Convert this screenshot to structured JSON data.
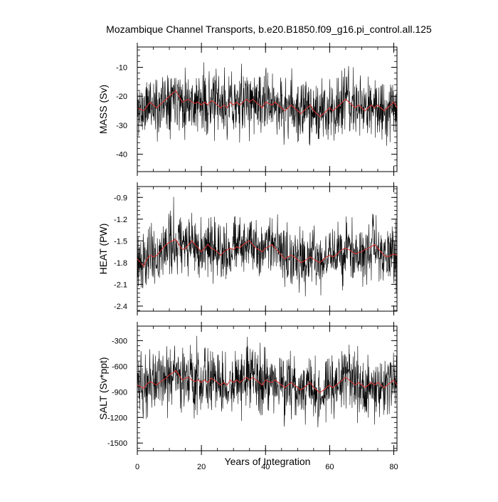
{
  "chart_data": {
    "type": "line",
    "title": "Mozambique Channel Transports, b.e20.B1850.f09_g16.pi_control.all.125",
    "xlabel": "Years of Integration",
    "xlim": [
      0,
      81
    ],
    "xticks": [
      0,
      20,
      40,
      60,
      80
    ],
    "colors": {
      "monthly": "#000000",
      "smoothed": "#e03030"
    },
    "panels": [
      {
        "name": "mass",
        "ylabel": "MASS (Sv)",
        "ylim": [
          -46,
          -3
        ],
        "yticks": [
          -10,
          -20,
          -30,
          -40
        ],
        "annual_mean": [
          -24,
          -24.5,
          -25,
          -23.5,
          -22,
          -23,
          -24,
          -23,
          -22,
          -21,
          -20,
          -19,
          -18,
          -20,
          -22,
          -21.5,
          -21,
          -22,
          -22.5,
          -22,
          -23,
          -22,
          -23,
          -21.5,
          -22,
          -23,
          -24,
          -23,
          -24,
          -22,
          -23,
          -22,
          -23,
          -22,
          -21,
          -22,
          -21,
          -22,
          -23,
          -24,
          -22,
          -22.5,
          -23,
          -22,
          -23,
          -24,
          -25,
          -24,
          -23,
          -24,
          -25,
          -26,
          -25,
          -24,
          -23,
          -25,
          -26,
          -27,
          -26,
          -25,
          -24,
          -25,
          -24,
          -23,
          -22,
          -21,
          -22,
          -23,
          -24,
          -23,
          -24,
          -25,
          -24,
          -23,
          -24,
          -23,
          -24,
          -25,
          -24,
          -23,
          -22,
          -24
        ]
      },
      {
        "name": "heat",
        "ylabel": "HEAT (PW)",
        "ylim": [
          -2.47,
          -0.75
        ],
        "yticks": [
          -0.9,
          -1.2,
          -1.5,
          -1.8,
          -2.1,
          -2.4
        ],
        "annual_mean": [
          -1.75,
          -1.8,
          -1.85,
          -1.75,
          -1.7,
          -1.72,
          -1.7,
          -1.65,
          -1.6,
          -1.55,
          -1.52,
          -1.5,
          -1.48,
          -1.55,
          -1.62,
          -1.6,
          -1.55,
          -1.5,
          -1.55,
          -1.6,
          -1.65,
          -1.6,
          -1.55,
          -1.6,
          -1.62,
          -1.65,
          -1.7,
          -1.65,
          -1.62,
          -1.6,
          -1.62,
          -1.58,
          -1.6,
          -1.55,
          -1.52,
          -1.5,
          -1.55,
          -1.6,
          -1.62,
          -1.65,
          -1.6,
          -1.58,
          -1.55,
          -1.6,
          -1.65,
          -1.7,
          -1.75,
          -1.72,
          -1.7,
          -1.72,
          -1.76,
          -1.8,
          -1.78,
          -1.75,
          -1.72,
          -1.75,
          -1.78,
          -1.8,
          -1.76,
          -1.72,
          -1.7,
          -1.72,
          -1.7,
          -1.65,
          -1.62,
          -1.6,
          -1.62,
          -1.65,
          -1.68,
          -1.66,
          -1.65,
          -1.62,
          -1.6,
          -1.58,
          -1.55,
          -1.6,
          -1.65,
          -1.7,
          -1.72,
          -1.7,
          -1.68,
          -1.7
        ]
      },
      {
        "name": "salt",
        "ylabel": "SALT (Sv*ppt)",
        "ylim": [
          -1590,
          -130
        ],
        "yticks": [
          -300,
          -600,
          -900,
          -1200,
          -1500
        ],
        "annual_mean": [
          -820,
          -840,
          -860,
          -810,
          -780,
          -800,
          -820,
          -790,
          -760,
          -740,
          -700,
          -680,
          -650,
          -700,
          -760,
          -740,
          -730,
          -760,
          -780,
          -760,
          -790,
          -760,
          -790,
          -740,
          -760,
          -790,
          -820,
          -790,
          -820,
          -760,
          -790,
          -760,
          -790,
          -760,
          -730,
          -760,
          -730,
          -760,
          -790,
          -820,
          -760,
          -780,
          -790,
          -760,
          -790,
          -820,
          -850,
          -820,
          -790,
          -820,
          -850,
          -880,
          -850,
          -820,
          -790,
          -850,
          -880,
          -910,
          -880,
          -850,
          -820,
          -850,
          -820,
          -790,
          -760,
          -730,
          -760,
          -790,
          -820,
          -790,
          -820,
          -850,
          -820,
          -790,
          -820,
          -790,
          -820,
          -850,
          -820,
          -790,
          -760,
          -820
        ]
      }
    ]
  }
}
